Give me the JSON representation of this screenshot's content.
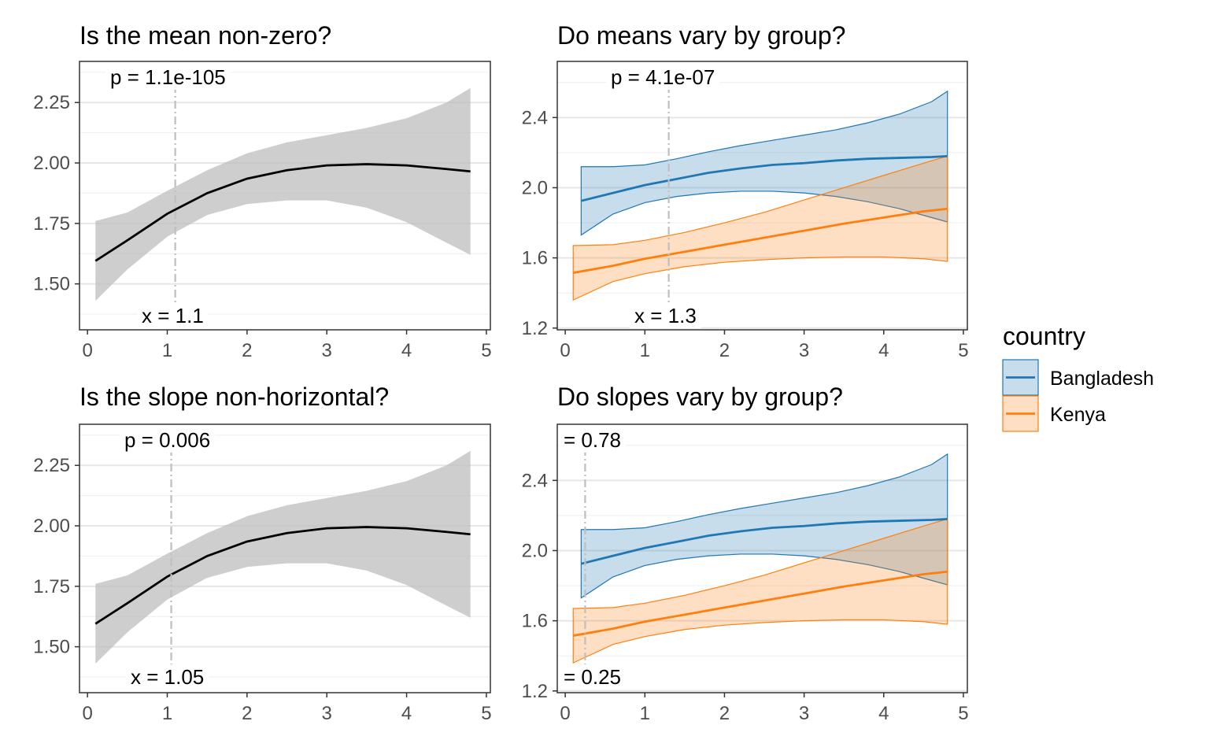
{
  "colors": {
    "bangladesh": "#1f77b4",
    "kenya": "#ff7f0e",
    "overall_band": "#bdbdbd",
    "overall_line": "#000000"
  },
  "legend": {
    "title": "country",
    "items": [
      {
        "label": "Bangladesh",
        "color": "#1f77b4"
      },
      {
        "label": "Kenya",
        "color": "#ff7f0e"
      }
    ]
  },
  "chart_data": [
    {
      "type": "line",
      "title": "Is the mean non-zero?",
      "xlim": [
        -0.1,
        5.05
      ],
      "ylim": [
        1.31,
        2.42
      ],
      "xticks": [
        0,
        1,
        2,
        3,
        4,
        5
      ],
      "yticks": [
        1.5,
        1.75,
        2.0,
        2.25
      ],
      "ytick_labels": [
        "1.50",
        "1.75",
        "2.00",
        "2.25"
      ],
      "grid": true,
      "vline_x": 1.1,
      "annotation_top": "p = 1.1e-105",
      "annotation_bottom": "x = 1.1",
      "series": [
        {
          "color": "#000000",
          "x": [
            0.1,
            0.5,
            1.0,
            1.5,
            2.0,
            2.5,
            3.0,
            3.5,
            4.0,
            4.5,
            4.8
          ],
          "y": [
            1.595,
            1.68,
            1.79,
            1.875,
            1.935,
            1.97,
            1.99,
            1.995,
            1.99,
            1.975,
            1.965
          ],
          "lower": [
            1.43,
            1.56,
            1.695,
            1.785,
            1.83,
            1.845,
            1.845,
            1.815,
            1.755,
            1.67,
            1.62
          ],
          "upper": [
            1.76,
            1.795,
            1.885,
            1.97,
            2.04,
            2.085,
            2.115,
            2.145,
            2.185,
            2.25,
            2.31
          ]
        }
      ]
    },
    {
      "type": "line",
      "title": "Do means vary by group?",
      "xlim": [
        -0.1,
        5.05
      ],
      "ylim": [
        1.19,
        2.72
      ],
      "xticks": [
        0,
        1,
        2,
        3,
        4,
        5
      ],
      "yticks": [
        1.2,
        1.6,
        2.0,
        2.4
      ],
      "ytick_labels": [
        "1.2",
        "1.6",
        "2.0",
        "2.4"
      ],
      "grid": true,
      "vline_x": 1.3,
      "annotation_top": "p = 4.1e-07",
      "annotation_bottom": "x = 1.3",
      "series": [
        {
          "name": "Bangladesh",
          "color": "#1f77b4",
          "x": [
            0.2,
            0.6,
            1.0,
            1.4,
            1.8,
            2.2,
            2.6,
            3.0,
            3.4,
            3.8,
            4.2,
            4.6,
            4.8
          ],
          "y": [
            1.925,
            1.97,
            2.015,
            2.05,
            2.085,
            2.11,
            2.13,
            2.14,
            2.155,
            2.165,
            2.17,
            2.175,
            2.18
          ],
          "lower": [
            1.73,
            1.85,
            1.915,
            1.95,
            1.97,
            1.98,
            1.98,
            1.97,
            1.95,
            1.92,
            1.88,
            1.83,
            1.805
          ],
          "upper": [
            2.12,
            2.12,
            2.13,
            2.165,
            2.205,
            2.24,
            2.27,
            2.3,
            2.33,
            2.37,
            2.42,
            2.49,
            2.55
          ]
        },
        {
          "name": "Kenya",
          "color": "#ff7f0e",
          "x": [
            0.1,
            0.6,
            1.0,
            1.5,
            2.0,
            2.5,
            3.0,
            3.5,
            4.0,
            4.5,
            4.8
          ],
          "y": [
            1.515,
            1.555,
            1.595,
            1.635,
            1.675,
            1.715,
            1.755,
            1.795,
            1.83,
            1.865,
            1.88
          ],
          "lower": [
            1.36,
            1.465,
            1.51,
            1.55,
            1.575,
            1.59,
            1.6,
            1.605,
            1.605,
            1.595,
            1.58
          ],
          "upper": [
            1.67,
            1.675,
            1.7,
            1.745,
            1.8,
            1.86,
            1.93,
            2.0,
            2.07,
            2.14,
            2.18
          ]
        }
      ]
    },
    {
      "type": "line",
      "title": "Is the slope non-horizontal?",
      "xlim": [
        -0.1,
        5.05
      ],
      "ylim": [
        1.31,
        2.42
      ],
      "xticks": [
        0,
        1,
        2,
        3,
        4,
        5
      ],
      "yticks": [
        1.5,
        1.75,
        2.0,
        2.25
      ],
      "ytick_labels": [
        "1.50",
        "1.75",
        "2.00",
        "2.25"
      ],
      "grid": true,
      "vline_x": 1.05,
      "annotation_top": "p = 0.006",
      "annotation_bottom": "x = 1.05",
      "series": [
        {
          "color": "#000000",
          "x": [
            0.1,
            0.5,
            1.0,
            1.5,
            2.0,
            2.5,
            3.0,
            3.5,
            4.0,
            4.5,
            4.8
          ],
          "y": [
            1.595,
            1.68,
            1.79,
            1.875,
            1.935,
            1.97,
            1.99,
            1.995,
            1.99,
            1.975,
            1.965
          ],
          "lower": [
            1.43,
            1.56,
            1.695,
            1.785,
            1.83,
            1.845,
            1.845,
            1.815,
            1.755,
            1.67,
            1.62
          ],
          "upper": [
            1.76,
            1.795,
            1.885,
            1.97,
            2.04,
            2.085,
            2.115,
            2.145,
            2.185,
            2.25,
            2.31
          ]
        }
      ]
    },
    {
      "type": "line",
      "title": "Do slopes vary by group?",
      "xlim": [
        -0.1,
        5.05
      ],
      "ylim": [
        1.19,
        2.72
      ],
      "xticks": [
        0,
        1,
        2,
        3,
        4,
        5
      ],
      "yticks": [
        1.2,
        1.6,
        2.0,
        2.4
      ],
      "ytick_labels": [
        "1.2",
        "1.6",
        "2.0",
        "2.4"
      ],
      "grid": true,
      "vline_x": 0.25,
      "annotation_top": "= 0.78",
      "annotation_bottom": "= 0.25",
      "series": [
        {
          "name": "Bangladesh",
          "color": "#1f77b4",
          "x": [
            0.2,
            0.6,
            1.0,
            1.4,
            1.8,
            2.2,
            2.6,
            3.0,
            3.4,
            3.8,
            4.2,
            4.6,
            4.8
          ],
          "y": [
            1.925,
            1.97,
            2.015,
            2.05,
            2.085,
            2.11,
            2.13,
            2.14,
            2.155,
            2.165,
            2.17,
            2.175,
            2.18
          ],
          "lower": [
            1.73,
            1.85,
            1.915,
            1.95,
            1.97,
            1.98,
            1.98,
            1.97,
            1.95,
            1.92,
            1.88,
            1.83,
            1.805
          ],
          "upper": [
            2.12,
            2.12,
            2.13,
            2.165,
            2.205,
            2.24,
            2.27,
            2.3,
            2.33,
            2.37,
            2.42,
            2.49,
            2.55
          ]
        },
        {
          "name": "Kenya",
          "color": "#ff7f0e",
          "x": [
            0.1,
            0.6,
            1.0,
            1.5,
            2.0,
            2.5,
            3.0,
            3.5,
            4.0,
            4.5,
            4.8
          ],
          "y": [
            1.515,
            1.555,
            1.595,
            1.635,
            1.675,
            1.715,
            1.755,
            1.795,
            1.83,
            1.865,
            1.88
          ],
          "lower": [
            1.36,
            1.465,
            1.51,
            1.55,
            1.575,
            1.59,
            1.6,
            1.605,
            1.605,
            1.595,
            1.58
          ],
          "upper": [
            1.67,
            1.675,
            1.7,
            1.745,
            1.8,
            1.86,
            1.93,
            2.0,
            2.07,
            2.14,
            2.18
          ]
        }
      ]
    }
  ]
}
